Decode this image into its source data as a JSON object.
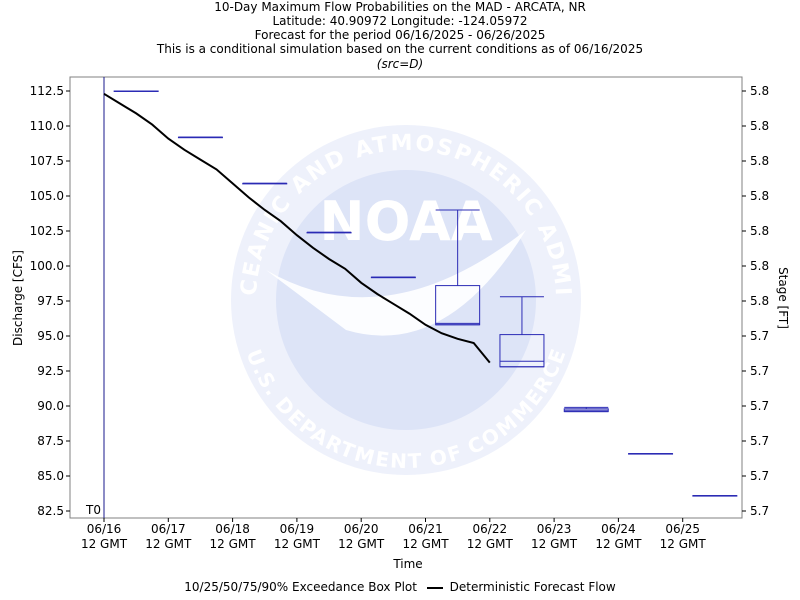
{
  "title_lines": [
    "10-Day Maximum Flow Probabilities on the MAD - ARCATA, NR",
    "Latitude: 40.90972 Longitude: -124.05972",
    "Forecast for the period 06/16/2025 - 06/26/2025",
    "This is a conditional simulation based on the current conditions as of 06/16/2025"
  ],
  "src_note": "(src=D)",
  "watermark": {
    "center_text": "NOAA",
    "ring_top": "NATIONAL OCEANIC AND ATMOSPHERIC ADMINISTRATION",
    "ring_bottom": "U.S. DEPARTMENT OF COMMERCE",
    "colors": {
      "light": "#eef1fb",
      "mid": "#dde4f7",
      "text": "#ffffff"
    }
  },
  "legend": {
    "box_plot_label": "10/25/50/75/90% Exceedance Box Plot",
    "line_label": "Deterministic Forecast Flow"
  },
  "colors": {
    "box": "#2b2bb5",
    "line": "#000000",
    "axis": "#808080",
    "t0": "#1a1a8c"
  },
  "chart_data": {
    "type": "box+line",
    "xlabel": "Time",
    "ylabel": "Discharge [CFS]",
    "ylabel_right": "Stage [FT]",
    "ylim": [
      82.0,
      113.5
    ],
    "x_range_days": [
      "06/16 06 GMT",
      "06/26 00 GMT"
    ],
    "t0_label": "T0",
    "t0_date": "06/16 12 GMT",
    "x_ticks": [
      {
        "d1": "06/16",
        "d2": "12 GMT"
      },
      {
        "d1": "06/17",
        "d2": "12 GMT"
      },
      {
        "d1": "06/18",
        "d2": "12 GMT"
      },
      {
        "d1": "06/19",
        "d2": "12 GMT"
      },
      {
        "d1": "06/20",
        "d2": "12 GMT"
      },
      {
        "d1": "06/21",
        "d2": "12 GMT"
      },
      {
        "d1": "06/22",
        "d2": "12 GMT"
      },
      {
        "d1": "06/23",
        "d2": "12 GMT"
      },
      {
        "d1": "06/24",
        "d2": "12 GMT"
      },
      {
        "d1": "06/25",
        "d2": "12 GMT"
      }
    ],
    "y_ticks": [
      {
        "v": 112.5,
        "label": "112.5",
        "stage": "5.8"
      },
      {
        "v": 110.0,
        "label": "110.0",
        "stage": "5.8"
      },
      {
        "v": 107.5,
        "label": "107.5",
        "stage": "5.8"
      },
      {
        "v": 105.0,
        "label": "105.0",
        "stage": "5.8"
      },
      {
        "v": 102.5,
        "label": "102.5",
        "stage": "5.8"
      },
      {
        "v": 100.0,
        "label": "100.0",
        "stage": "5.8"
      },
      {
        "v": 97.5,
        "label": "97.5",
        "stage": "5.8"
      },
      {
        "v": 95.0,
        "label": "95.0",
        "stage": "5.7"
      },
      {
        "v": 92.5,
        "label": "92.5",
        "stage": "5.7"
      },
      {
        "v": 90.0,
        "label": "90.0",
        "stage": "5.7"
      },
      {
        "v": 87.5,
        "label": "87.5",
        "stage": "5.7"
      },
      {
        "v": 85.0,
        "label": "85.0",
        "stage": "5.7"
      },
      {
        "v": 82.5,
        "label": "82.5",
        "stage": "5.7"
      }
    ],
    "boxes": [
      {
        "day": "06/17",
        "p10": 112.5,
        "p25": 112.5,
        "p50": 112.5,
        "p75": 112.5,
        "p90": 112.5
      },
      {
        "day": "06/18",
        "p10": 109.2,
        "p25": 109.2,
        "p50": 109.2,
        "p75": 109.2,
        "p90": 109.2
      },
      {
        "day": "06/19",
        "p10": 105.9,
        "p25": 105.9,
        "p50": 105.9,
        "p75": 105.9,
        "p90": 105.9
      },
      {
        "day": "06/20",
        "p10": 102.4,
        "p25": 102.4,
        "p50": 102.4,
        "p75": 102.4,
        "p90": 102.4
      },
      {
        "day": "06/21",
        "p10": 99.2,
        "p25": 99.2,
        "p50": 99.2,
        "p75": 99.2,
        "p90": 99.2
      },
      {
        "day": "06/22",
        "p10": 95.8,
        "p25": 95.8,
        "p50": 95.9,
        "p75": 98.6,
        "p90": 104.0
      },
      {
        "day": "06/23",
        "p10": 92.8,
        "p25": 92.8,
        "p50": 93.2,
        "p75": 95.1,
        "p90": 97.8
      },
      {
        "day": "06/24",
        "p10": 89.6,
        "p25": 89.6,
        "p50": 89.7,
        "p75": 89.8,
        "p90": 89.9
      },
      {
        "day": "06/25",
        "p10": 86.6,
        "p25": 86.6,
        "p50": 86.6,
        "p75": 86.6,
        "p90": 86.6
      },
      {
        "day": "06/26",
        "p10": 83.6,
        "p25": 83.6,
        "p50": 83.6,
        "p75": 83.6,
        "p90": 83.6
      }
    ],
    "series": [
      {
        "name": "Deterministic Forecast Flow",
        "x_days_since_t0": [
          0,
          0.25,
          0.5,
          0.75,
          1.0,
          1.25,
          1.5,
          1.75,
          2.0,
          2.25,
          2.5,
          2.75,
          3.0,
          3.25,
          3.5,
          3.75,
          4.0,
          4.25,
          4.5,
          4.75,
          5.0,
          5.25,
          5.5,
          5.75,
          6.0
        ],
        "values": [
          112.3,
          111.6,
          110.9,
          110.1,
          109.1,
          108.3,
          107.6,
          106.9,
          105.9,
          104.9,
          104.0,
          103.2,
          102.2,
          101.3,
          100.5,
          99.8,
          98.8,
          98.0,
          97.3,
          96.6,
          95.8,
          95.2,
          94.8,
          94.5,
          93.1
        ]
      }
    ]
  }
}
